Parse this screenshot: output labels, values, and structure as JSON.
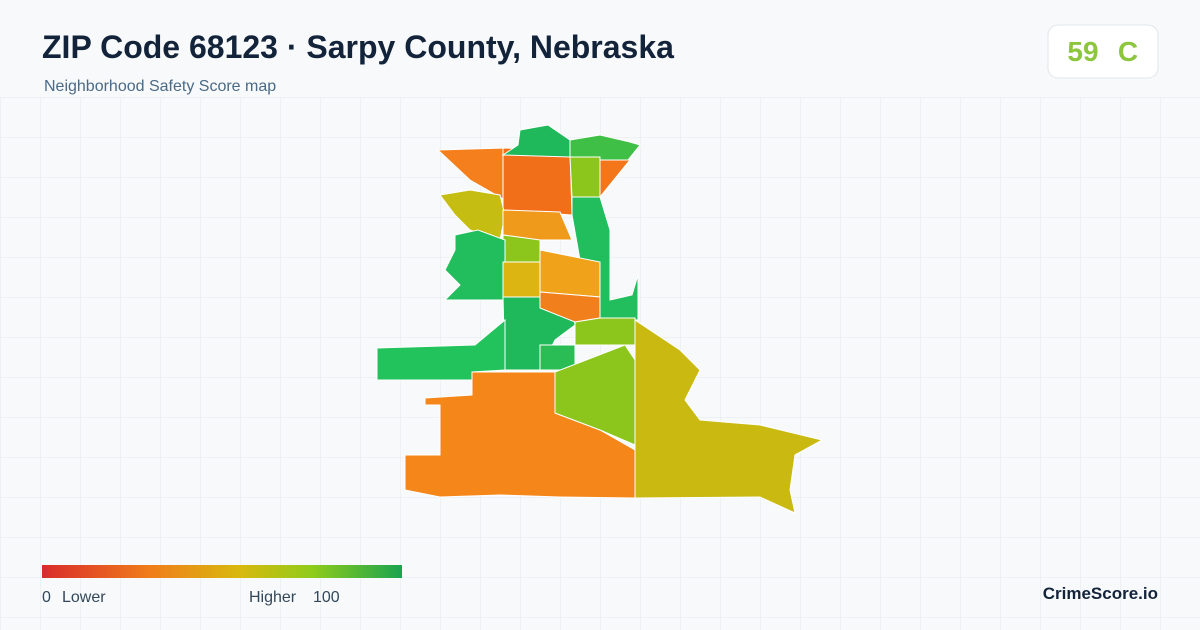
{
  "header": {
    "title": "ZIP Code 68123 · Sarpy County, Nebraska",
    "subtitle": "Neighborhood Safety Score map",
    "score": "59",
    "grade": "C"
  },
  "legend": {
    "min": "0",
    "min_label": "Lower",
    "max_label": "Higher",
    "max": "100"
  },
  "footer": {
    "brand": "CrimeScore.io"
  }
}
